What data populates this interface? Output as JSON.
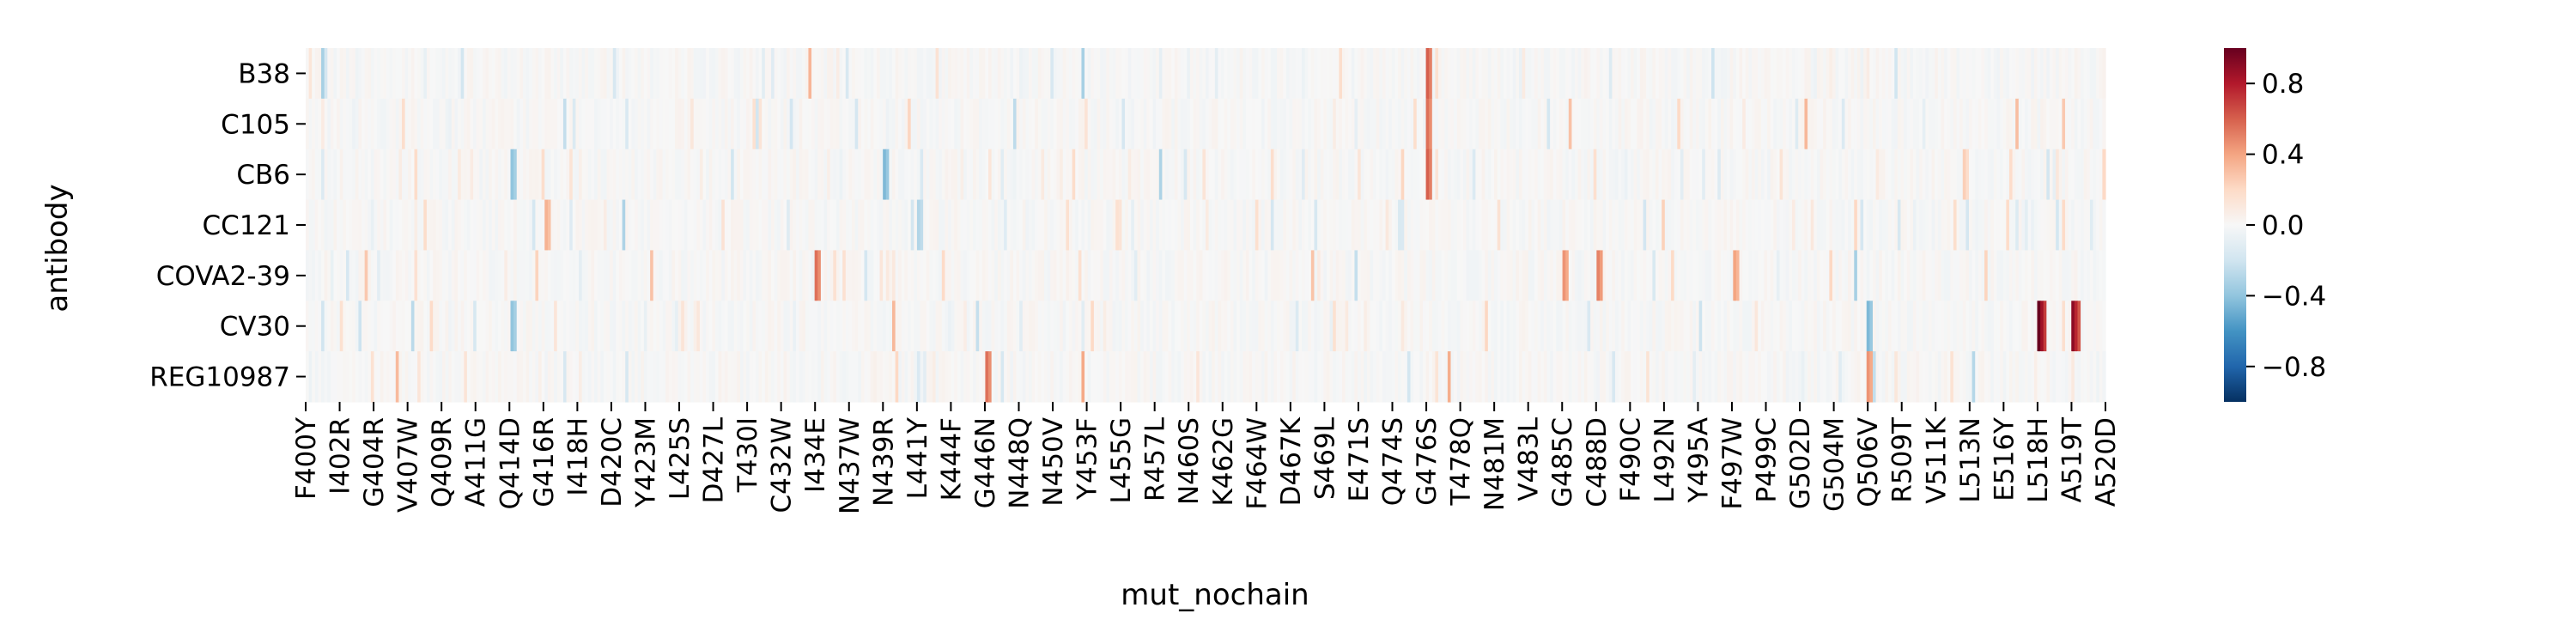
{
  "chart_data": {
    "type": "heatmap",
    "title": "",
    "xlabel": "mut_nochain",
    "ylabel": "antibody",
    "rows": [
      "B38",
      "C105",
      "CB6",
      "CC121",
      "COVA2-39",
      "CV30",
      "REG10987"
    ],
    "x_tick_labels": [
      "F400Y",
      "I402R",
      "G404R",
      "V407W",
      "Q409R",
      "A411G",
      "Q414D",
      "G416R",
      "I418H",
      "D420C",
      "Y423M",
      "L425S",
      "D427L",
      "T430I",
      "C432W",
      "I434E",
      "N437W",
      "N439R",
      "L441Y",
      "K444F",
      "G446N",
      "N448Q",
      "N450V",
      "Y453F",
      "L455G",
      "R457L",
      "N460S",
      "K462G",
      "F464W",
      "D467K",
      "S469L",
      "E471S",
      "Q474S",
      "G476S",
      "T478Q",
      "N481M",
      "V483L",
      "G485C",
      "C488D",
      "F490C",
      "L492N",
      "Y495A",
      "F497W",
      "P499C",
      "G502D",
      "G504M",
      "Q506V",
      "R509T",
      "V511K",
      "L513N",
      "E516Y",
      "L518H",
      "A519T",
      "A520D"
    ],
    "colorbar": {
      "min": -1.0,
      "max": 1.0,
      "ticks": [
        -0.8,
        -0.4,
        0.0,
        0.4,
        0.8
      ],
      "tick_labels": [
        "−0.8",
        "−0.4",
        "0.0",
        "0.4",
        "0.8"
      ],
      "colormap": "RdBu_r"
    },
    "highlights": [
      {
        "row": "B38",
        "x": "G476S",
        "value": 0.6
      },
      {
        "row": "C105",
        "x": "G476S",
        "value": 0.55
      },
      {
        "row": "CB6",
        "x": "G476S",
        "value": 0.6
      },
      {
        "row": "CB6",
        "x": "Q414D",
        "value": -0.4
      },
      {
        "row": "CB6",
        "x": "N439R",
        "value": -0.45
      },
      {
        "row": "CC121",
        "x": "G416R",
        "value": 0.35
      },
      {
        "row": "CC121",
        "x": "L441Y",
        "value": -0.3
      },
      {
        "row": "COVA2-39",
        "x": "I434E",
        "value": 0.55
      },
      {
        "row": "COVA2-39",
        "x": "G485C",
        "value": 0.45
      },
      {
        "row": "COVA2-39",
        "x": "C488D",
        "value": 0.5
      },
      {
        "row": "COVA2-39",
        "x": "F497W",
        "value": 0.4
      },
      {
        "row": "CV30",
        "x": "Q414D",
        "value": -0.4
      },
      {
        "row": "CV30",
        "x": "Q506V",
        "value": -0.45
      },
      {
        "row": "CV30",
        "x": "L518H",
        "value": 1.0
      },
      {
        "row": "CV30",
        "x": "A519T",
        "value": 0.9
      },
      {
        "row": "REG10987",
        "x": "G446N",
        "value": 0.55
      },
      {
        "row": "REG10987",
        "x": "Q506V",
        "value": 0.45
      }
    ]
  }
}
